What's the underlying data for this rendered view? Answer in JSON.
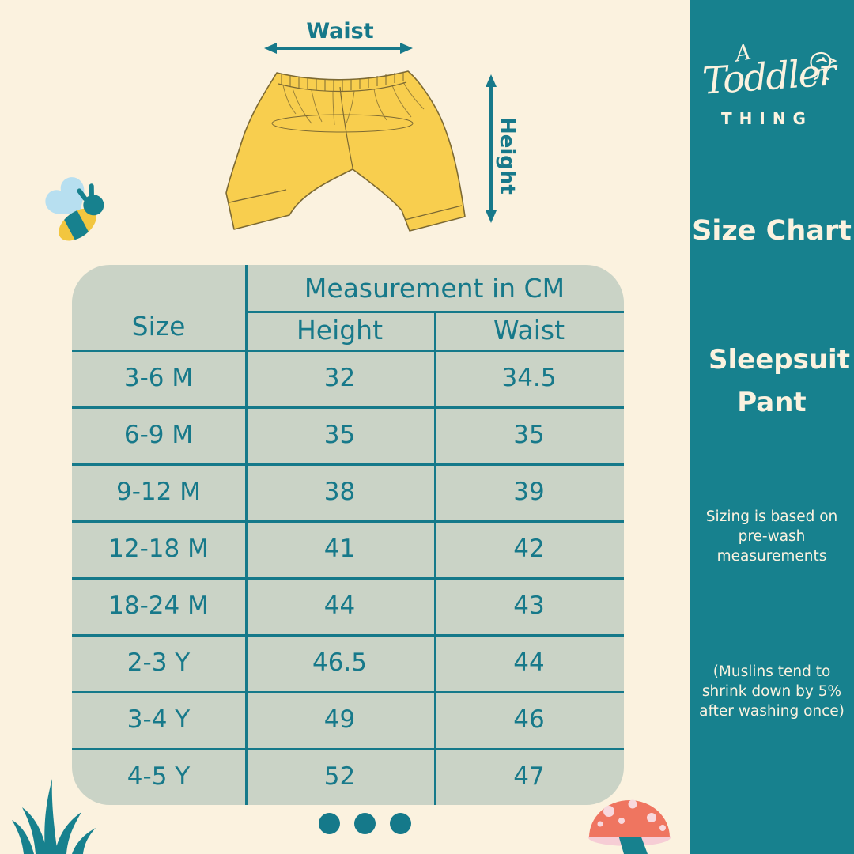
{
  "colors": {
    "background_cream": "#FBF2DF",
    "sidebar_teal": "#17818E",
    "table_sage": "#CAD3C6",
    "line_text_teal": "#15798A",
    "pants_yellow": "#F8CE4E",
    "pants_outline": "#7D6A33",
    "bee_wing_blue": "#B7DFF0",
    "mushroom_coral": "#EF7560",
    "mushroom_pink": "#F6CDD5"
  },
  "sidebar": {
    "brand": {
      "a": "A",
      "name": "Toddler",
      "sub": "THING"
    },
    "title": "Size Chart",
    "product": "Sleepsuit Pant",
    "note_sizing": "Sizing is based on pre-wash measurements",
    "note_muslin": "(Muslins tend to shrink down by 5% after washing once)"
  },
  "diagram": {
    "waist_label": "Waist",
    "height_label": "Height"
  },
  "icons": {
    "bee": "bee-icon",
    "bird": "bird-doodle-icon",
    "grass": "grass-icon",
    "mushroom": "mushroom-icon",
    "waist_arrow": "horizontal-double-arrow-icon",
    "height_arrow": "vertical-double-arrow-icon"
  },
  "chart_data": {
    "type": "table",
    "title": "Measurement in CM",
    "columns": [
      "Size",
      "Height",
      "Waist"
    ],
    "rows": [
      [
        "3-6 M",
        "32",
        "34.5"
      ],
      [
        "6-9 M",
        "35",
        "35"
      ],
      [
        "9-12 M",
        "38",
        "39"
      ],
      [
        "12-18 M",
        "41",
        "42"
      ],
      [
        "18-24 M",
        "44",
        "43"
      ],
      [
        "2-3 Y",
        "46.5",
        "44"
      ],
      [
        "3-4 Y",
        "49",
        "46"
      ],
      [
        "4-5 Y",
        "52",
        "47"
      ]
    ]
  }
}
